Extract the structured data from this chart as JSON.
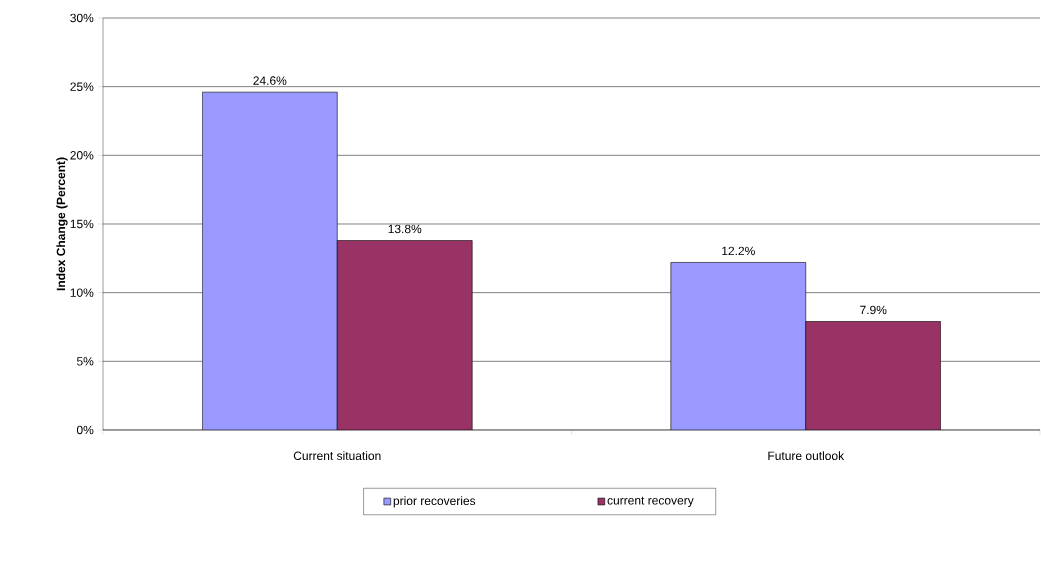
{
  "chart_data": {
    "type": "bar",
    "ylabel": "Index Change (Percent)",
    "categories": [
      "Current situation",
      "Future outlook"
    ],
    "series": [
      {
        "name": "prior recoveries",
        "color": "#9999ff",
        "values": [
          24.6,
          12.2
        ],
        "value_labels": [
          "24.6%",
          "12.2%"
        ]
      },
      {
        "name": "current recovery",
        "color": "#993366",
        "values": [
          13.8,
          7.9
        ],
        "value_labels": [
          "13.8%",
          "7.9%"
        ]
      }
    ],
    "ylim": [
      0,
      30
    ],
    "yticks": [
      {
        "value": 0,
        "label": "0%"
      },
      {
        "value": 5,
        "label": "5%"
      },
      {
        "value": 10,
        "label": "10%"
      },
      {
        "value": 15,
        "label": "15%"
      },
      {
        "value": 20,
        "label": "20%"
      },
      {
        "value": 25,
        "label": "25%"
      },
      {
        "value": 30,
        "label": "30%"
      }
    ],
    "grid": "y",
    "legend": "bottom"
  }
}
